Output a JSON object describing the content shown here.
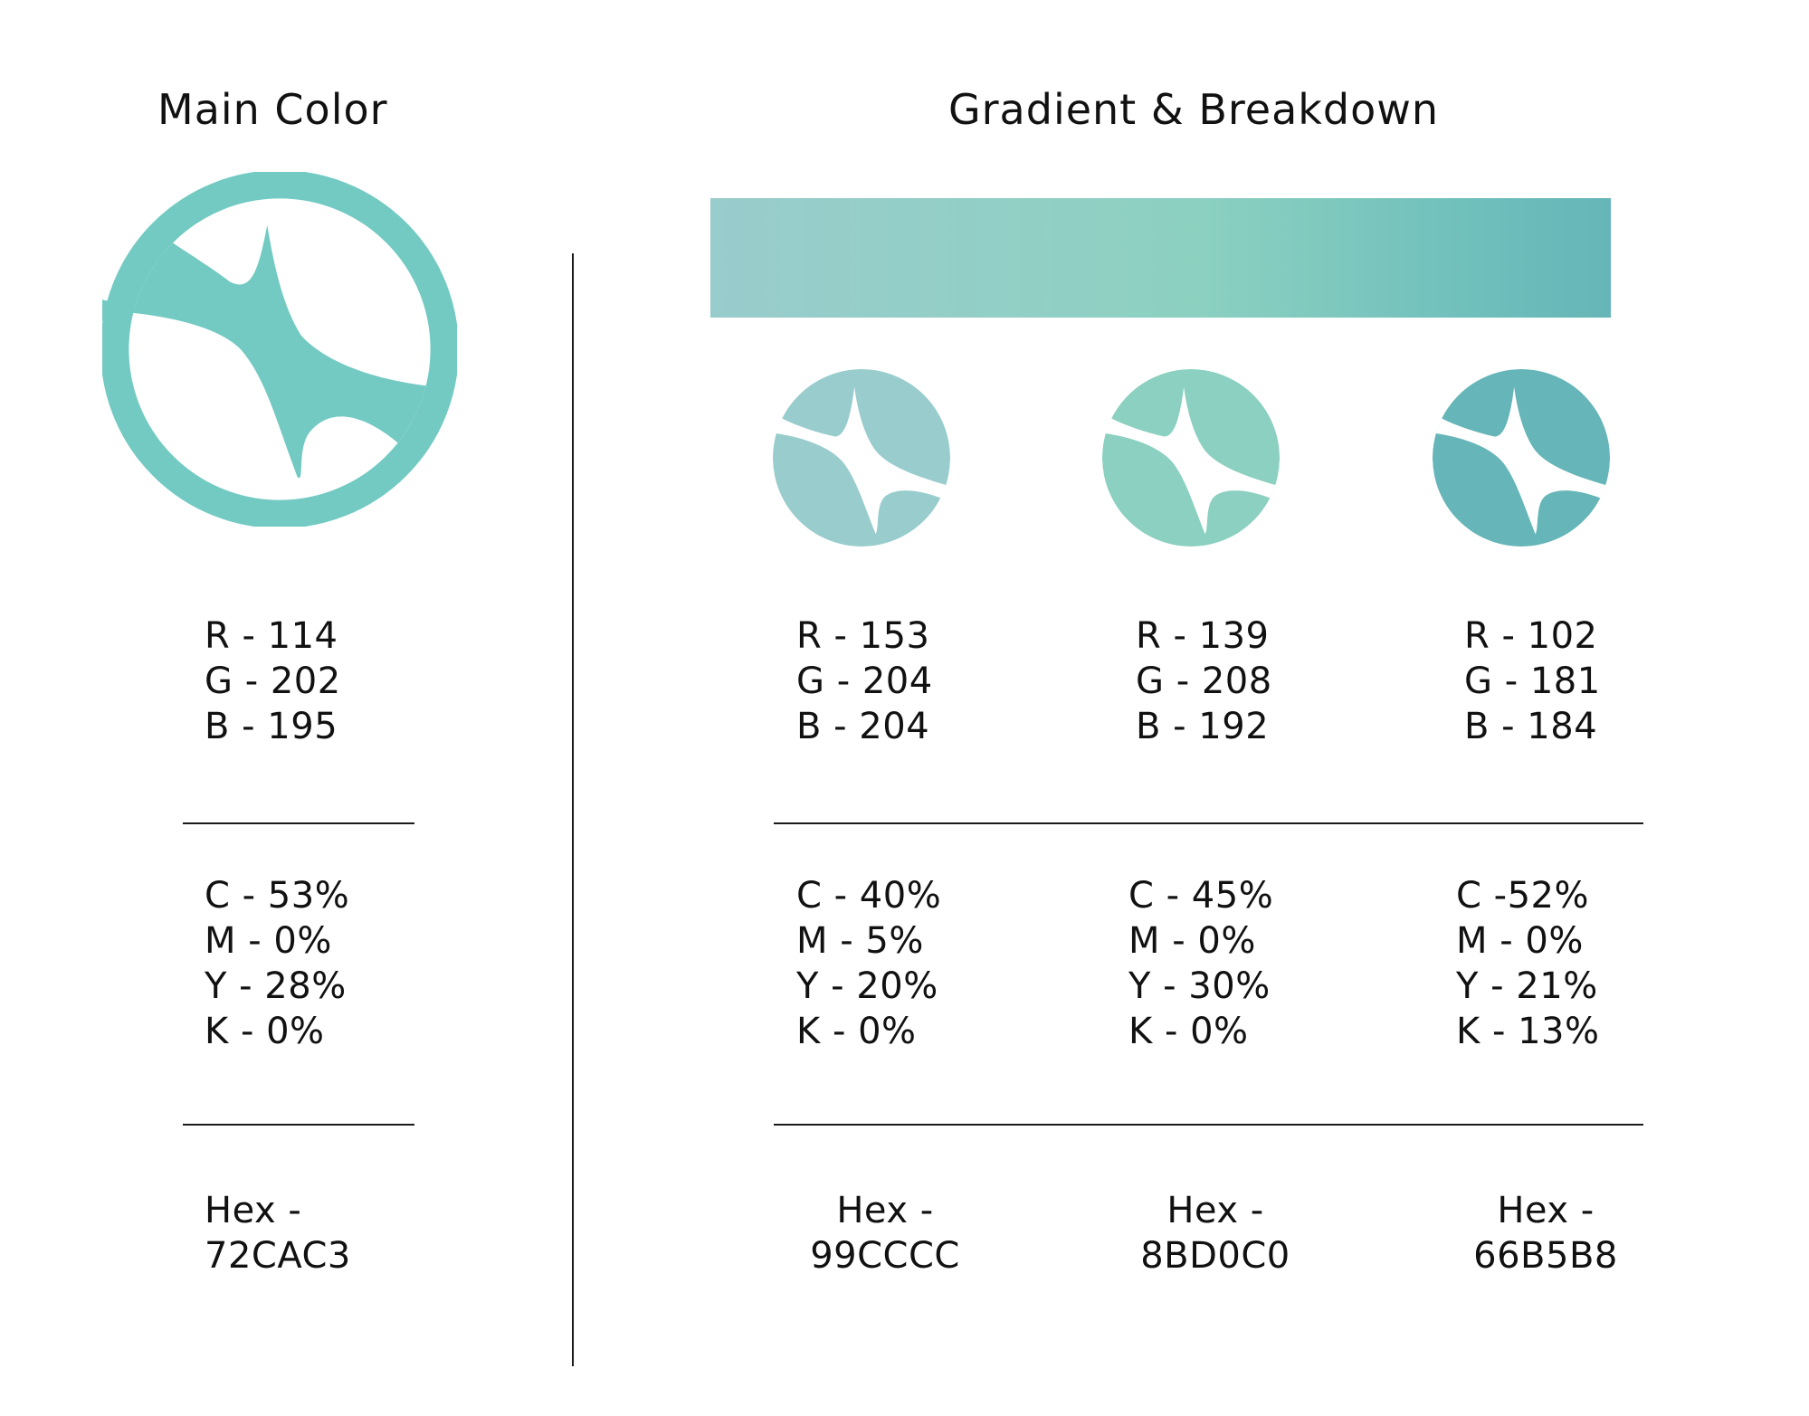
{
  "main_color": {
    "title": "Main Color",
    "color": "#72CAC3",
    "rgb": [
      "R - 114",
      "G - 202",
      "B - 195"
    ],
    "cmyk": [
      "C - 53%",
      "M - 0%",
      "Y - 28%",
      "K - 0%"
    ],
    "hex_label": "Hex -",
    "hex_value": "72CAC3"
  },
  "gradient": {
    "title": "Gradient & Breakdown",
    "bar_colors": [
      "#99CCCC",
      "#8BD0C0",
      "#66B5B8"
    ],
    "swatches": [
      {
        "color": "#99CCCC",
        "rgb": [
          "R - 153",
          "G - 204",
          "B - 204"
        ],
        "cmyk": [
          "C - 40%",
          "M - 5%",
          "Y - 20%",
          "K - 0%"
        ],
        "hex_label": "Hex -",
        "hex_value": "99CCCC"
      },
      {
        "color": "#8BD0C0",
        "rgb": [
          "R - 139",
          "G - 208",
          "B - 192"
        ],
        "cmyk": [
          "C - 45%",
          "M - 0%",
          "Y - 30%",
          "K - 0%"
        ],
        "hex_label": "Hex -",
        "hex_value": "8BD0C0"
      },
      {
        "color": "#66B5B8",
        "rgb": [
          "R - 102",
          "G - 181",
          "B - 184"
        ],
        "cmyk": [
          "C -52%",
          "M - 0%",
          "Y - 21%",
          "K - 13%"
        ],
        "hex_label": "Hex -",
        "hex_value": "66B5B8"
      }
    ]
  },
  "icons": {
    "main": "star-ring-logo-icon",
    "swatch": "star-disc-logo-icon"
  }
}
